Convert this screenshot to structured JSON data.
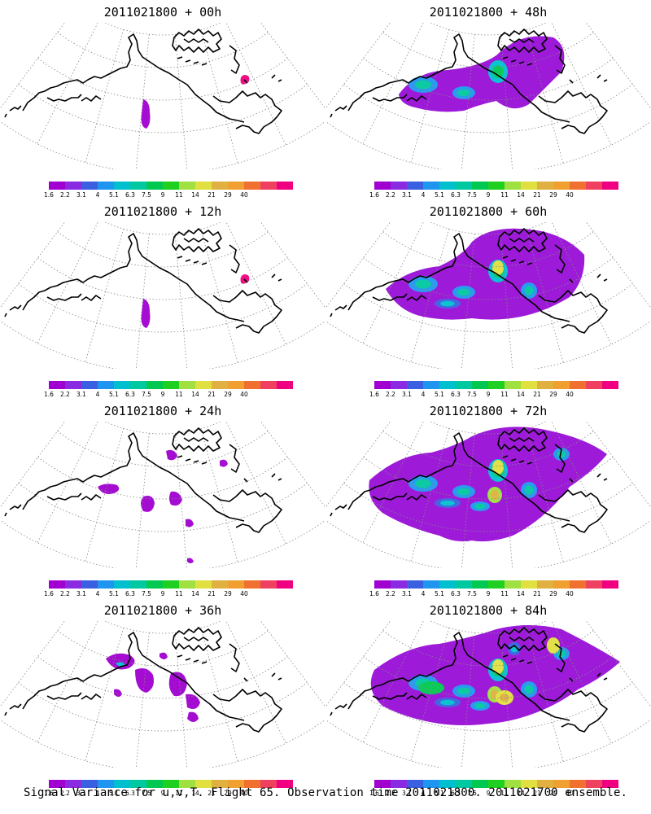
{
  "panels": [
    {
      "id": "p00",
      "title": "2011021800 + 00h",
      "col": 0,
      "row": 0,
      "level": 0
    },
    {
      "id": "p48",
      "title": "2011021800 + 48h",
      "col": 1,
      "row": 0,
      "level": 2
    },
    {
      "id": "p12",
      "title": "2011021800 + 12h",
      "col": 0,
      "row": 1,
      "level": 0
    },
    {
      "id": "p60",
      "title": "2011021800 + 60h",
      "col": 1,
      "row": 1,
      "level": 3
    },
    {
      "id": "p24",
      "title": "2011021800 + 24h",
      "col": 0,
      "row": 2,
      "level": 1
    },
    {
      "id": "p72",
      "title": "2011021800 + 72h",
      "col": 1,
      "row": 2,
      "level": 4
    },
    {
      "id": "p36",
      "title": "2011021800 + 36h",
      "col": 0,
      "row": 3,
      "level": 1
    },
    {
      "id": "p84",
      "title": "2011021800 + 84h",
      "col": 1,
      "row": 3,
      "level": 5
    }
  ],
  "colorbar": {
    "labels": [
      "1.6",
      "2.2",
      "3.1",
      "4",
      "5.1",
      "6.3",
      "7.5",
      "9",
      "11",
      "14",
      "21",
      "29",
      "40"
    ],
    "colors": [
      "#a000d0",
      "#8a2be2",
      "#3a5fe0",
      "#1e96f0",
      "#00c0d0",
      "#00c8a0",
      "#00c850",
      "#20d020",
      "#a0e040",
      "#e0e040",
      "#e0b040",
      "#f0a030",
      "#f07030",
      "#f04060",
      "#f00080"
    ]
  },
  "caption": "Signal Variance for u,v,T. Flight 65. Observation time 2011021800. 2011021700 ensemble."
}
